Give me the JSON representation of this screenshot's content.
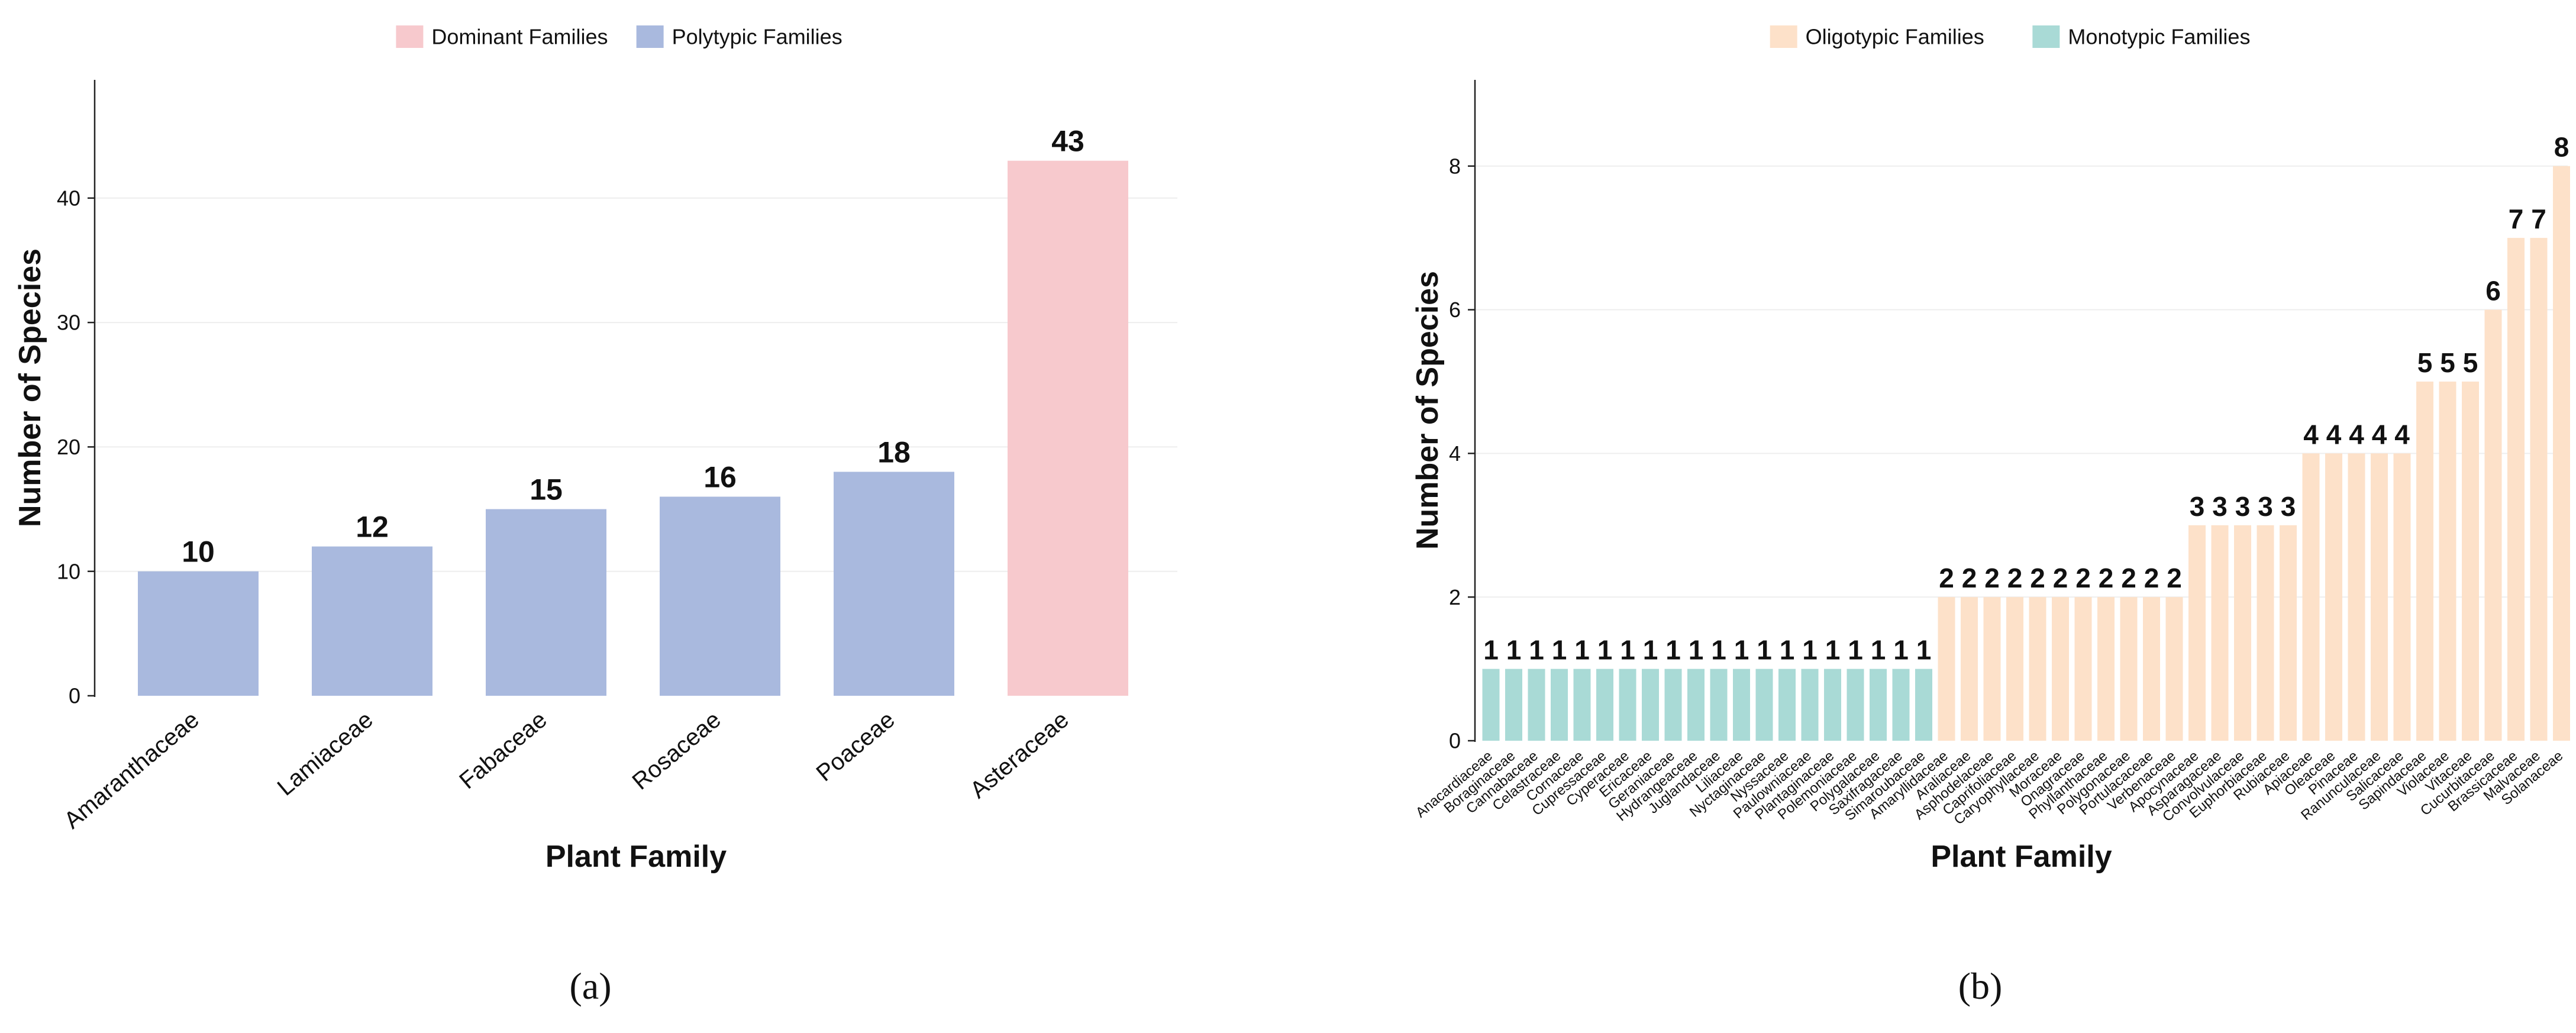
{
  "chart_data": [
    {
      "type": "bar",
      "panel_label": "(a)",
      "title": "",
      "xlabel": "Plant Family",
      "ylabel": "Number of Species",
      "ylim": [
        0,
        49.5
      ],
      "yticks": [
        0,
        10,
        20,
        30,
        40
      ],
      "grid": true,
      "legend": {
        "placement": "top-center",
        "entries": [
          {
            "name": "Dominant Families",
            "color": "#f7c9cd"
          },
          {
            "name": "Polytypic Families",
            "color": "#a9b9de"
          }
        ]
      },
      "categories": [
        "Amaranthaceae",
        "Lamiaceae",
        "Fabaceae",
        "Rosaceae",
        "Poaceae",
        "Asteraceae"
      ],
      "values": [
        10,
        12,
        15,
        16,
        18,
        43
      ],
      "groups": [
        "Polytypic Families",
        "Polytypic Families",
        "Polytypic Families",
        "Polytypic Families",
        "Polytypic Families",
        "Dominant Families"
      ],
      "data_labels": [
        "10",
        "12",
        "15",
        "16",
        "18",
        "43"
      ]
    },
    {
      "type": "bar",
      "panel_label": "(b)",
      "title": "",
      "xlabel": "Plant Family",
      "ylabel": "Number of Species",
      "ylim": [
        0,
        9.2
      ],
      "yticks": [
        0,
        2,
        4,
        6,
        8
      ],
      "grid": true,
      "legend": {
        "placement": "top-center",
        "entries": [
          {
            "name": "Oligotypic Families",
            "color": "#fde1c9"
          },
          {
            "name": "Monotypic Families",
            "color": "#a9dad6"
          }
        ]
      },
      "categories": [
        "Anacardiaceae",
        "Boraginaceae",
        "Cannabaceae",
        "Celastraceae",
        "Cornaceae",
        "Cupressaceae",
        "Cyperaceae",
        "Ericaceae",
        "Geraniaceae",
        "Hydrangeaceae",
        "Juglandaceae",
        "Liliaceae",
        "Nyctaginaceae",
        "Nyssaceae",
        "Paulowniaceae",
        "Plantaginaceae",
        "Polemoniaceae",
        "Polygalaceae",
        "Saxifragaceae",
        "Simaroubaceae",
        "Amaryllidaceae",
        "Araliaceae",
        "Asphodelaceae",
        "Caprifoliaceae",
        "Caryophyllaceae",
        "Moraceae",
        "Onagraceae",
        "Phyllanthaceae",
        "Polygonaceae",
        "Portulacaceae",
        "Verbenaceae",
        "Apocynaceae",
        "Asparagaceae",
        "Convolvulaceae",
        "Euphorbiaceae",
        "Rubiaceae",
        "Apiaceae",
        "Oleaceae",
        "Pinaceae",
        "Ranunculaceae",
        "Salicaceae",
        "Sapindaceae",
        "Violaceae",
        "Vitaceae",
        "Cucurbitaceae",
        "Brassicaceae",
        "Malvaceae",
        "Solanaceae"
      ],
      "values": [
        1,
        1,
        1,
        1,
        1,
        1,
        1,
        1,
        1,
        1,
        1,
        1,
        1,
        1,
        1,
        1,
        1,
        1,
        1,
        1,
        2,
        2,
        2,
        2,
        2,
        2,
        2,
        2,
        2,
        2,
        2,
        3,
        3,
        3,
        3,
        3,
        4,
        4,
        4,
        4,
        4,
        5,
        5,
        5,
        6,
        7,
        7,
        8
      ],
      "groups_rule": "value 1 = Monotypic Families; values 2-8 = Oligotypic Families",
      "data_labels": [
        "1",
        "1",
        "1",
        "1",
        "1",
        "1",
        "1",
        "1",
        "1",
        "1",
        "1",
        "1",
        "1",
        "1",
        "1",
        "1",
        "1",
        "1",
        "1",
        "1",
        "2",
        "2",
        "2",
        "2",
        "2",
        "2",
        "2",
        "2",
        "2",
        "2",
        "2",
        "3",
        "3",
        "3",
        "3",
        "3",
        "4",
        "4",
        "4",
        "4",
        "4",
        "5",
        "5",
        "5",
        "6",
        "7",
        "7",
        "8"
      ]
    }
  ]
}
